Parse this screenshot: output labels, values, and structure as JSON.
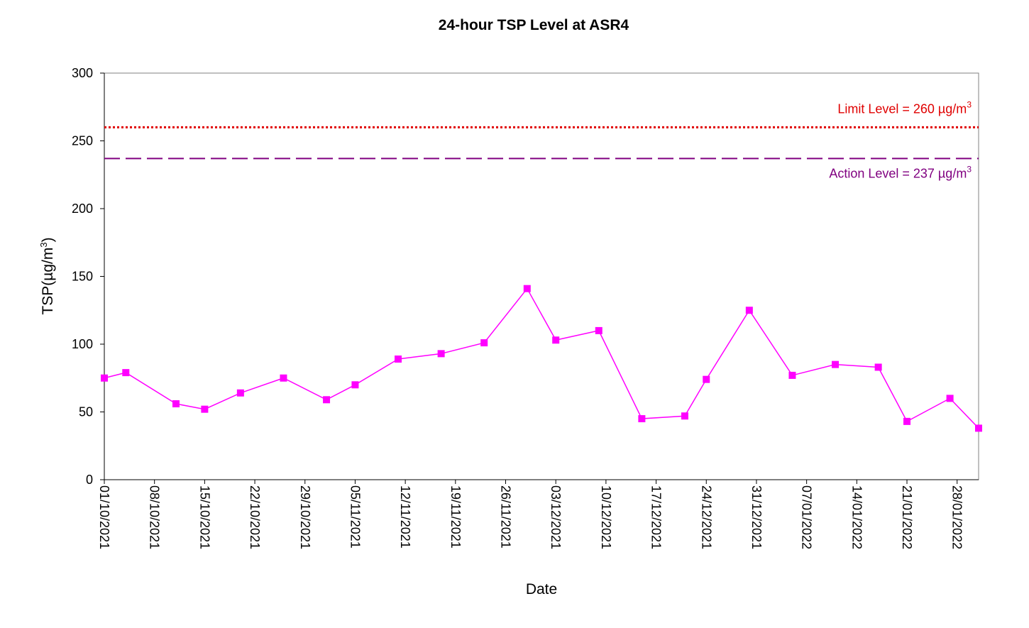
{
  "chart_data": {
    "type": "line",
    "title": "24-hour TSP Level at ASR4",
    "x_label": "Date",
    "y_label": [
      "TSP(µg/m",
      "3",
      ")"
    ],
    "xlim": [
      "01/10/2021",
      "31/01/2022"
    ],
    "xticks": [
      "01/10/2021",
      "08/10/2021",
      "15/10/2021",
      "22/10/2021",
      "29/10/2021",
      "05/11/2021",
      "12/11/2021",
      "19/11/2021",
      "26/11/2021",
      "03/12/2021",
      "10/12/2021",
      "17/12/2021",
      "24/12/2021",
      "31/12/2021",
      "07/01/2022",
      "14/01/2022",
      "21/01/2022",
      "28/01/2022"
    ],
    "ylim": [
      0,
      300
    ],
    "yticks": [
      0,
      50,
      100,
      150,
      200,
      250,
      300
    ],
    "x": [
      "01/10/2021",
      "04/10/2021",
      "11/10/2021",
      "15/10/2021",
      "20/10/2021",
      "26/10/2021",
      "01/11/2021",
      "05/11/2021",
      "11/11/2021",
      "17/11/2021",
      "23/11/2021",
      "29/11/2021",
      "03/12/2021",
      "09/12/2021",
      "15/12/2021",
      "21/12/2021",
      "24/12/2021",
      "30/12/2021",
      "05/01/2022",
      "11/01/2022",
      "17/01/2022",
      "21/01/2022",
      "27/01/2022",
      "31/01/2022"
    ],
    "series": [
      {
        "name": "TSP",
        "color": "#ff00ff",
        "values": [
          75,
          79,
          56,
          52,
          64,
          75,
          59,
          70,
          89,
          93,
          101,
          141,
          103,
          110,
          45,
          47,
          74,
          125,
          77,
          85,
          83,
          43,
          60,
          38
        ]
      }
    ],
    "reference_lines": [
      {
        "value": 260,
        "color": "#e00000",
        "style": "dotted",
        "label": [
          "Limit Level = 260 µg/m",
          "3"
        ]
      },
      {
        "value": 237,
        "color": "#800080",
        "style": "dashed",
        "label": [
          "Action Level = 237 µg/m",
          "3"
        ]
      }
    ]
  }
}
